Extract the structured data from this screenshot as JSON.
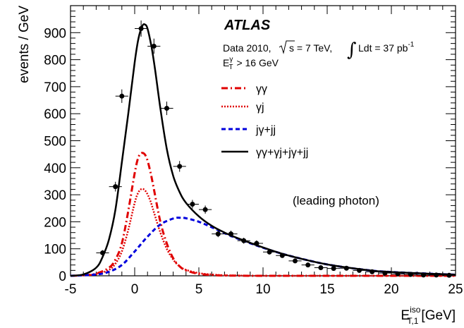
{
  "chart_data": {
    "type": "line",
    "experiment": "ATLAS",
    "info_line1_prefix": "Data 2010,",
    "info_line1_energy": "s = 7 TeV,",
    "info_line1_lumi": "Ldt = 37 pb",
    "info_line1_lumi_exp": "-1",
    "info_line2_base": "E",
    "info_line2_sup": "γ",
    "info_line2_sub": "T",
    "info_line2_rest": "> 16 GeV",
    "annotation": "(leading photon)",
    "ylabel": "events / GeV",
    "xlabel_base": "E",
    "xlabel_sup": "iso",
    "xlabel_sub": "T,1",
    "xlabel_unit": "[GeV]",
    "xlim": [
      -5,
      25
    ],
    "ylim": [
      0,
      1000
    ],
    "x_ticks": [
      -5,
      0,
      5,
      10,
      15,
      20,
      25
    ],
    "y_ticks": [
      0,
      100,
      200,
      300,
      400,
      500,
      600,
      700,
      800,
      900
    ],
    "legend_placement": "upper-right",
    "colors": {
      "gg": "#e00000",
      "gj": "#e00000",
      "jgjj": "#0000dd",
      "total": "#000000",
      "data": "#000000"
    },
    "series": [
      {
        "name": "γγ",
        "style": "dash-dot",
        "x": [
          -5,
          -4,
          -3,
          -2,
          -1.5,
          -1,
          -0.5,
          0,
          0.3,
          0.6,
          0.9,
          1.2,
          1.5,
          2,
          2.5,
          3,
          3.5,
          4,
          5,
          6,
          7,
          8,
          10,
          15,
          25
        ],
        "y": [
          0,
          2,
          8,
          30,
          60,
          120,
          240,
          380,
          440,
          455,
          440,
          390,
          320,
          200,
          120,
          65,
          35,
          20,
          7,
          3,
          1,
          0.5,
          0,
          0,
          0
        ]
      },
      {
        "name": "γj",
        "style": "dotted",
        "x": [
          -5,
          -4,
          -3,
          -2,
          -1.5,
          -1,
          -0.5,
          0,
          0.3,
          0.6,
          0.9,
          1.2,
          1.5,
          2,
          2.5,
          3,
          3.5,
          4,
          5,
          6,
          7,
          8,
          10,
          15,
          25
        ],
        "y": [
          0,
          2,
          6,
          22,
          45,
          90,
          170,
          270,
          310,
          322,
          310,
          280,
          235,
          160,
          100,
          60,
          35,
          22,
          10,
          5,
          2,
          1,
          0,
          0,
          0
        ]
      },
      {
        "name": "jγ+jj",
        "style": "dashed",
        "x": [
          -5,
          -3,
          -2,
          -1,
          0,
          1,
          2,
          3,
          3.5,
          4,
          5,
          6,
          7,
          8,
          10,
          12,
          15,
          18,
          20,
          25
        ],
        "y": [
          0,
          5,
          15,
          40,
          90,
          145,
          190,
          212,
          215,
          213,
          200,
          180,
          158,
          138,
          104,
          75,
          42,
          22,
          14,
          4
        ]
      },
      {
        "name": "γγ+γj+jγ+jj",
        "style": "solid",
        "x": [
          -5,
          -4,
          -3,
          -2.5,
          -2,
          -1.5,
          -1,
          -0.5,
          0,
          0.3,
          0.6,
          0.8,
          1,
          1.3,
          1.6,
          2,
          2.5,
          3,
          3.5,
          4,
          5,
          6,
          7,
          8,
          10,
          12,
          15,
          18,
          20,
          25
        ],
        "y": [
          0,
          5,
          30,
          70,
          135,
          245,
          420,
          600,
          790,
          880,
          925,
          930,
          915,
          850,
          760,
          620,
          470,
          370,
          310,
          270,
          220,
          185,
          160,
          140,
          105,
          75,
          42,
          22,
          14,
          4
        ]
      }
    ],
    "data_points": {
      "name": "Data 2010",
      "x": [
        -2.5,
        -1.5,
        -1,
        0.5,
        1.5,
        2.5,
        3.5,
        4.5,
        5.5,
        6.5,
        7.5,
        8.5,
        9.5,
        10.5,
        11.5,
        12.5,
        13.5,
        14.5,
        15.5,
        16.5,
        17.5,
        18.5,
        19.5,
        20.5,
        21.5,
        22.5,
        23.5,
        24.5
      ],
      "y": [
        85,
        330,
        665,
        915,
        850,
        620,
        405,
        265,
        245,
        155,
        155,
        130,
        120,
        88,
        75,
        55,
        40,
        30,
        27,
        28,
        20,
        15,
        10,
        7,
        5,
        3,
        3,
        2
      ],
      "xerr": 0.5,
      "yerr": [
        10,
        18,
        25,
        30,
        28,
        25,
        20,
        16,
        15,
        12,
        12,
        11,
        11,
        9,
        8,
        7,
        6,
        5,
        5,
        5,
        4,
        4,
        3,
        3,
        2,
        2,
        2,
        1
      ]
    }
  }
}
